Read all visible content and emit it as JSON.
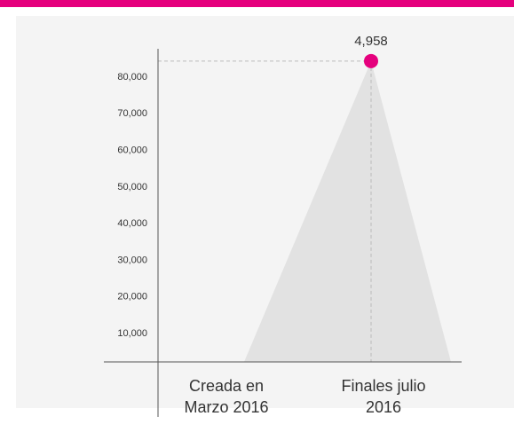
{
  "chart_data": {
    "type": "line",
    "categories": [
      "Creada en Marzo 2016",
      "Finales julio 2016"
    ],
    "values": [
      null,
      84400
    ],
    "annotation": "4,958",
    "color": "#e5007d",
    "ylim": [
      2250,
      87750
    ],
    "yticks": [
      {
        "value": 10000,
        "label": "10,000"
      },
      {
        "value": 20000,
        "label": "20,000"
      },
      {
        "value": 30000,
        "label": "30,000"
      },
      {
        "value": 40000,
        "label": "40,000"
      },
      {
        "value": 50000,
        "label": "50,000"
      },
      {
        "value": 60000,
        "label": "60,000"
      },
      {
        "value": 70000,
        "label": "70,000"
      },
      {
        "value": 80000,
        "label": "80,000"
      }
    ]
  }
}
